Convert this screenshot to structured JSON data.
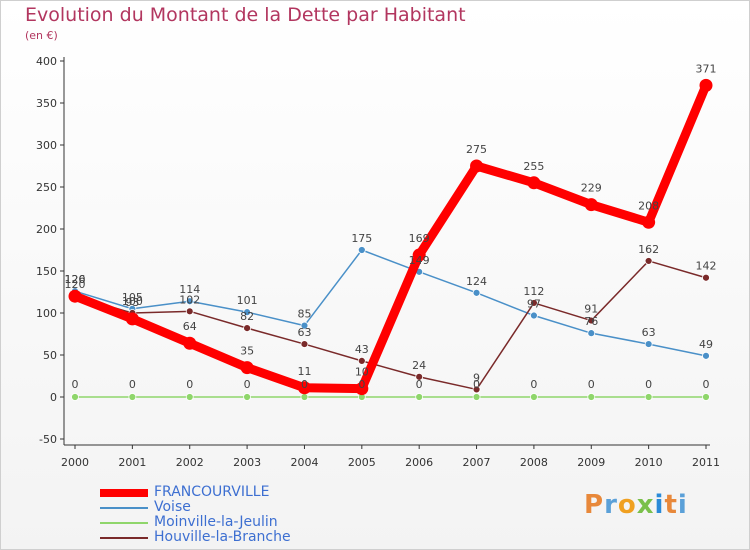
{
  "title": "Evolution du Montant de la Dette par Habitant",
  "subtitle": "(en €)",
  "logo_text": "Proxiti",
  "chart_data": {
    "type": "line",
    "title": "Evolution du Montant de la Dette par Habitant",
    "ylabel": "(en €)",
    "xlabel": "",
    "x": [
      "2000",
      "2001",
      "2002",
      "2003",
      "2004",
      "2005",
      "2006",
      "2007",
      "2008",
      "2009",
      "2010",
      "2011"
    ],
    "ylim": [
      -50,
      400
    ],
    "yticks": [
      -50,
      0,
      50,
      100,
      150,
      200,
      250,
      300,
      350,
      400
    ],
    "grid": false,
    "legend_position": "bottom-left",
    "series": [
      {
        "name": "FRANCOURVILLE",
        "color": "#ff0000",
        "values": [
          120,
          93,
          64,
          35,
          11,
          10,
          169,
          275,
          255,
          229,
          208,
          371
        ],
        "labels": [
          "120",
          "93",
          "64",
          "35",
          "11",
          "10",
          "169",
          "275",
          "255",
          "229",
          "208",
          "371"
        ]
      },
      {
        "name": "Voise",
        "color": "#4a90c8",
        "values": [
          126,
          105,
          114,
          101,
          85,
          175,
          149,
          124,
          97,
          76,
          63,
          49
        ],
        "labels": [
          "126",
          "105",
          "114",
          "101",
          "85",
          "175",
          "149",
          "124",
          "97",
          "76",
          "63",
          "49"
        ]
      },
      {
        "name": "Moinville-la-Jeulin",
        "color": "#8fd66b",
        "values": [
          0,
          0,
          0,
          0,
          0,
          0,
          0,
          0,
          0,
          0,
          0,
          0
        ],
        "labels": [
          "0",
          "0",
          "0",
          "0",
          "0",
          "0",
          "0",
          "0",
          "0",
          "0",
          "0",
          "0"
        ]
      },
      {
        "name": "Houville-la-Branche",
        "color": "#7a2a2a",
        "values": [
          120,
          100,
          102,
          82,
          63,
          43,
          24,
          9,
          112,
          91,
          162,
          142
        ],
        "labels": [
          "120",
          "100",
          "102",
          "82",
          "63",
          "43",
          "24",
          "9",
          "112",
          "91",
          "162",
          "142"
        ]
      }
    ]
  }
}
